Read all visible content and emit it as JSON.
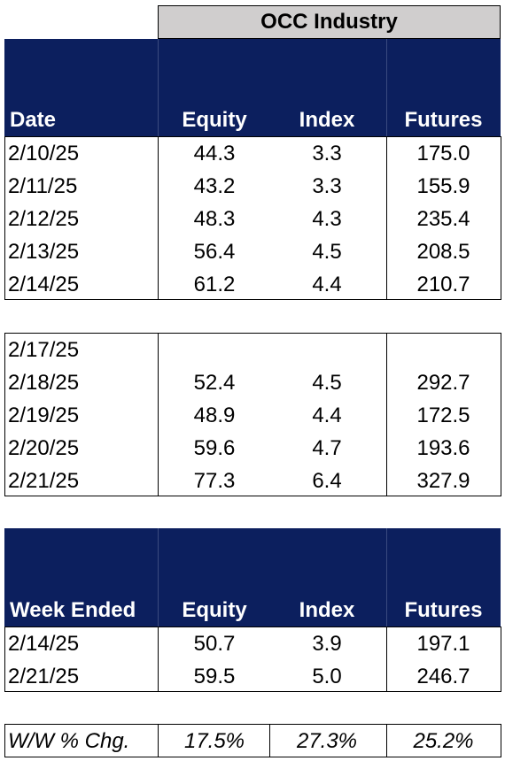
{
  "title": "OCC Industry",
  "headers": {
    "date": "Date",
    "equity": "Equity",
    "index": "Index",
    "futures": "Futures"
  },
  "week1": [
    {
      "date": "2/10/25",
      "equity": "44.3",
      "index": "3.3",
      "futures": "175.0"
    },
    {
      "date": "2/11/25",
      "equity": "43.2",
      "index": "3.3",
      "futures": "155.9"
    },
    {
      "date": "2/12/25",
      "equity": "48.3",
      "index": "4.3",
      "futures": "235.4"
    },
    {
      "date": "2/13/25",
      "equity": "56.4",
      "index": "4.5",
      "futures": "208.5"
    },
    {
      "date": "2/14/25",
      "equity": "61.2",
      "index": "4.4",
      "futures": "210.7"
    }
  ],
  "week2": [
    {
      "date": "2/17/25",
      "equity": "",
      "index": "",
      "futures": ""
    },
    {
      "date": "2/18/25",
      "equity": "52.4",
      "index": "4.5",
      "futures": "292.7"
    },
    {
      "date": "2/19/25",
      "equity": "48.9",
      "index": "4.4",
      "futures": "172.5"
    },
    {
      "date": "2/20/25",
      "equity": "59.6",
      "index": "4.7",
      "futures": "193.6"
    },
    {
      "date": "2/21/25",
      "equity": "77.3",
      "index": "6.4",
      "futures": "327.9"
    }
  ],
  "weekly": {
    "headers": {
      "date": "Week Ended",
      "equity": "Equity",
      "index": "Index",
      "futures": "Futures"
    },
    "rows": [
      {
        "date": "2/14/25",
        "equity": "50.7",
        "index": "3.9",
        "futures": "197.1"
      },
      {
        "date": "2/21/25",
        "equity": "59.5",
        "index": "5.0",
        "futures": "246.7"
      }
    ]
  },
  "change": {
    "label": "W/W % Chg.",
    "equity": "17.5%",
    "index": "27.3%",
    "futures": "25.2%"
  }
}
